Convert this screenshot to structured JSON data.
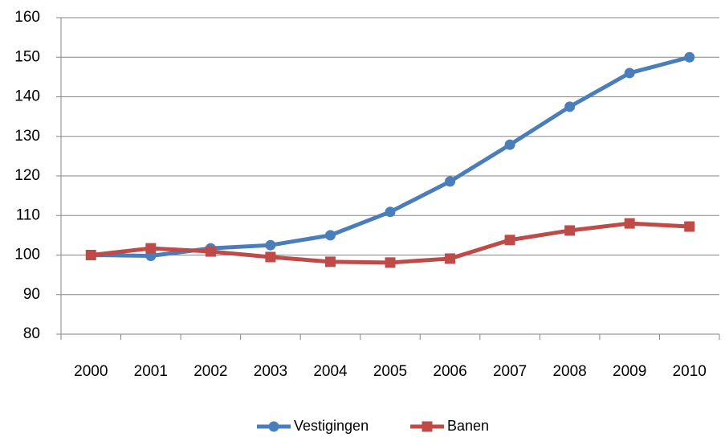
{
  "chart_data": {
    "type": "line",
    "categories": [
      "2000",
      "2001",
      "2002",
      "2003",
      "2004",
      "2005",
      "2006",
      "2007",
      "2008",
      "2009",
      "2010"
    ],
    "series": [
      {
        "name": "Vestigingen",
        "color": "#4a7ebb",
        "marker": "circle",
        "values": [
          100,
          99.8,
          101.7,
          102.5,
          105,
          110.9,
          118.6,
          127.9,
          137.5,
          146,
          150
        ]
      },
      {
        "name": "Banen",
        "color": "#be4b48",
        "marker": "square",
        "values": [
          100,
          101.7,
          100.9,
          99.5,
          98.3,
          98.1,
          99.1,
          103.8,
          106.2,
          108,
          107.2
        ]
      }
    ],
    "ylim": [
      80,
      160
    ],
    "yticks": [
      80,
      90,
      100,
      110,
      120,
      130,
      140,
      150,
      160
    ],
    "grid": true,
    "legend": "bottom"
  }
}
